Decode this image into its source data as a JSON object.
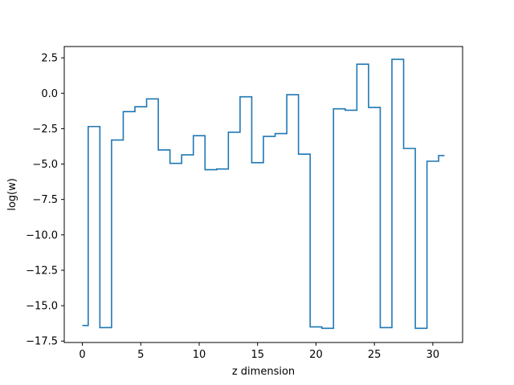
{
  "chart_data": {
    "type": "line",
    "drawstyle": "steps-mid",
    "title": "",
    "xlabel": "z dimension",
    "ylabel": "log(w)",
    "xlim": [
      -1.55,
      32.55
    ],
    "ylim": [
      -17.6,
      3.3
    ],
    "xticks": [
      0,
      5,
      10,
      15,
      20,
      25,
      30
    ],
    "xtick_labels": [
      "0",
      "5",
      "10",
      "15",
      "20",
      "25",
      "30"
    ],
    "yticks": [
      2.5,
      0.0,
      -2.5,
      -5.0,
      -7.5,
      -10.0,
      -12.5,
      -15.0,
      -17.5
    ],
    "ytick_labels": [
      "2.5",
      "0.0",
      "−2.5",
      "−5.0",
      "−7.5",
      "−10.0",
      "−12.5",
      "−15.0",
      "−17.5"
    ],
    "grid": false,
    "series": [
      {
        "name": "",
        "color": "#1f77b4",
        "x": [
          0,
          1,
          2,
          3,
          4,
          5,
          6,
          7,
          8,
          9,
          10,
          11,
          12,
          13,
          14,
          15,
          16,
          17,
          18,
          19,
          20,
          21,
          22,
          23,
          24,
          25,
          26,
          27,
          28,
          29,
          30,
          31
        ],
        "values": [
          -16.4,
          -2.35,
          -16.55,
          -3.3,
          -1.3,
          -0.95,
          -0.4,
          -4.0,
          -4.95,
          -4.35,
          -3.0,
          -5.4,
          -5.35,
          -2.75,
          -0.25,
          -4.9,
          -3.05,
          -2.85,
          -0.1,
          -4.3,
          -16.5,
          -16.6,
          -1.1,
          -1.2,
          2.05,
          -1.0,
          -16.55,
          2.4,
          -3.9,
          -16.6,
          -4.8,
          -4.4
        ]
      }
    ]
  }
}
